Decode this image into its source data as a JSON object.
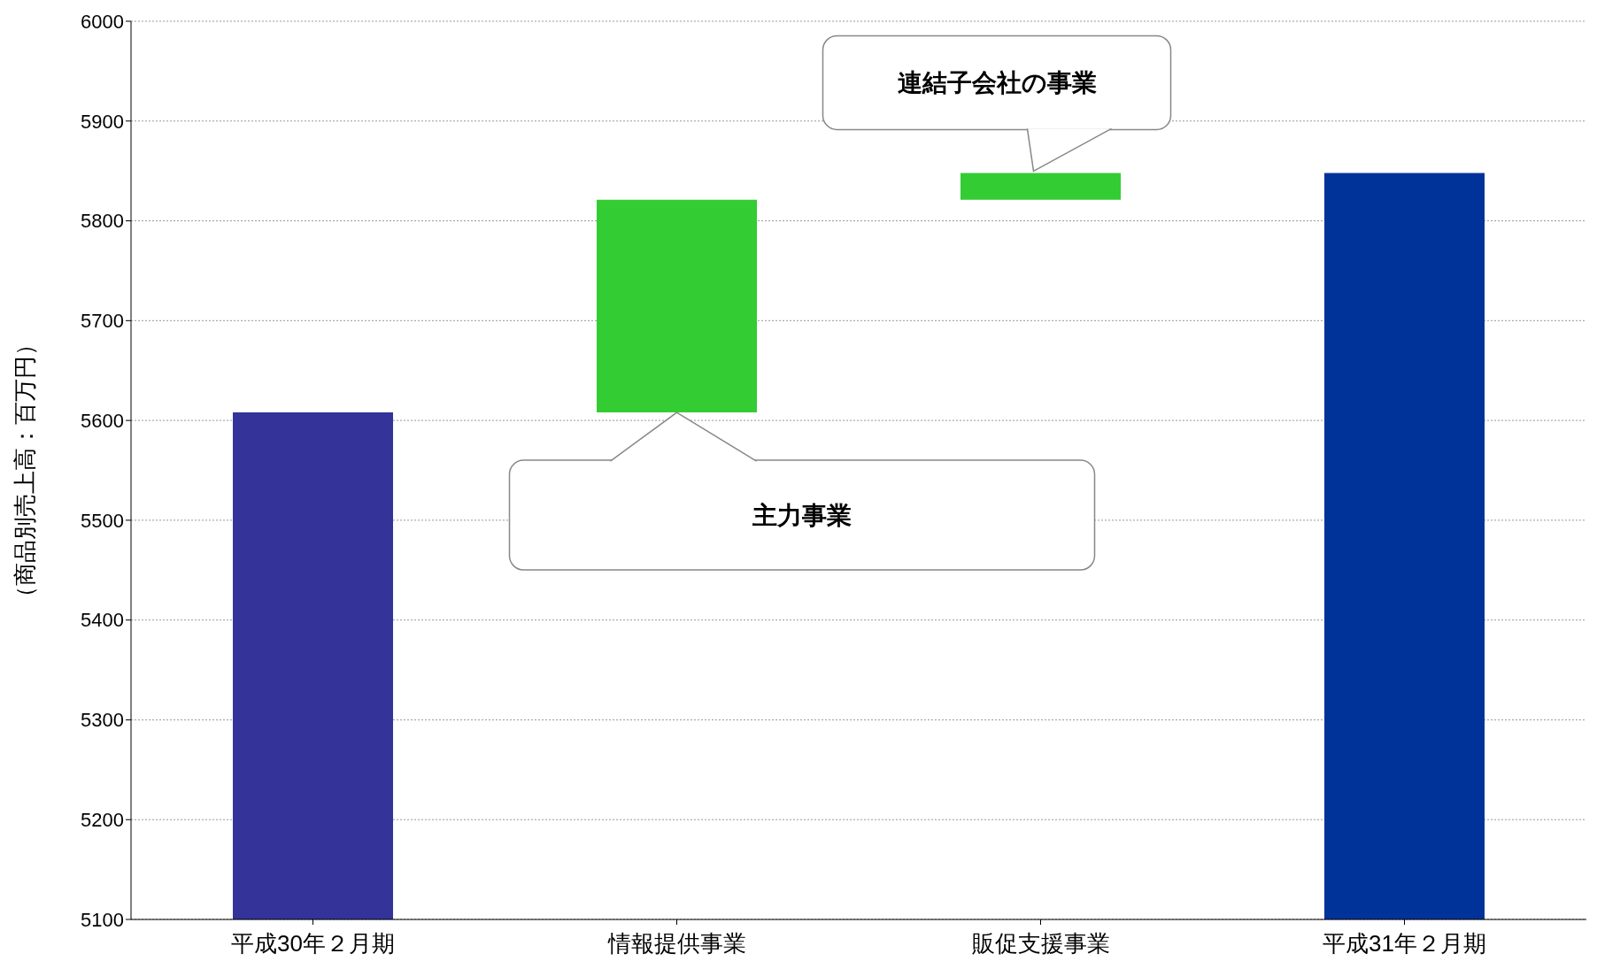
{
  "chart_data": {
    "type": "bar",
    "ylabel": "（商品別売上高：百万円）",
    "categories": [
      "平成30年２月期",
      "情報提供事業",
      "販促支援事業",
      "平成31年２月期"
    ],
    "values": [
      5608,
      213,
      27,
      5848
    ],
    "base": [
      null,
      5608,
      5821,
      null
    ],
    "colors": [
      "#333399",
      "#33cc33",
      "#33cc33",
      "#003399"
    ],
    "ylim": [
      5100,
      6000
    ],
    "yticks": [
      5100,
      5200,
      5300,
      5400,
      5500,
      5600,
      5700,
      5800,
      5900,
      6000
    ],
    "grid": "y",
    "annotations": [
      "主力事業",
      "連結子会社の事業"
    ]
  }
}
